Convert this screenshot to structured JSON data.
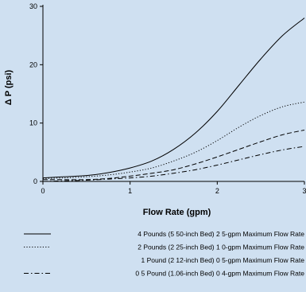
{
  "chart_data": {
    "type": "line",
    "xlabel": "Flow Rate (gpm)",
    "ylabel": "Δ P (psi)",
    "xlim": [
      0,
      3
    ],
    "ylim": [
      0,
      30
    ],
    "x_ticks": [
      "0",
      "1",
      "2",
      "3"
    ],
    "y_ticks": [
      "0",
      "10",
      "20",
      "30"
    ],
    "grid": false,
    "legend_position": "bottom",
    "x": [
      0,
      0.25,
      0.5,
      0.75,
      1.0,
      1.25,
      1.5,
      1.75,
      2.0,
      2.25,
      2.5,
      2.75,
      3.0
    ],
    "series": [
      {
        "name": "4 Pounds (5.50-inch Bed) 2.5-gpm Maximum Flow Rate",
        "style": "solid",
        "values": [
          0.6,
          0.8,
          1.0,
          1.5,
          2.3,
          3.5,
          5.5,
          8.3,
          12.0,
          16.5,
          21.0,
          25.0,
          28.0
        ]
      },
      {
        "name": "2 Pounds (2.25-inch Bed) 1.0-gpm Maximum Flow Rate",
        "style": "dotted",
        "values": [
          0.5,
          0.6,
          0.8,
          1.1,
          1.6,
          2.3,
          3.5,
          5.0,
          7.0,
          9.3,
          11.3,
          12.8,
          13.6
        ]
      },
      {
        "name": "1 Pound (2.12-inch Bed) 0.5-gpm Maximum Flow Rate",
        "style": "dashed",
        "values": [
          0.3,
          0.3,
          0.3,
          0.5,
          0.9,
          1.4,
          2.0,
          3.0,
          4.2,
          5.5,
          6.8,
          8.0,
          8.8
        ]
      },
      {
        "name": "0.5 Pound (1.06-inch Bed) 0.4-gpm Maximum Flow Rate",
        "style": "dashdot",
        "values": [
          0.0,
          0.1,
          0.2,
          0.4,
          0.6,
          0.9,
          1.4,
          2.0,
          2.8,
          3.7,
          4.6,
          5.4,
          6.0
        ]
      }
    ],
    "legend": [
      "4 Pounds (5 50-inch Bed) 2 5-gpm Maximum Flow Rate",
      "2 Pounds (2 25-inch Bed) 1 0-gpm Maximum Flow Rate",
      "1 Pound (2 12-inch Bed) 0 5-gpm Maximum Flow Rate",
      "0 5 Pound (1.06-inch Bed) 0 4-gpm Maximum Flow Rate"
    ]
  }
}
